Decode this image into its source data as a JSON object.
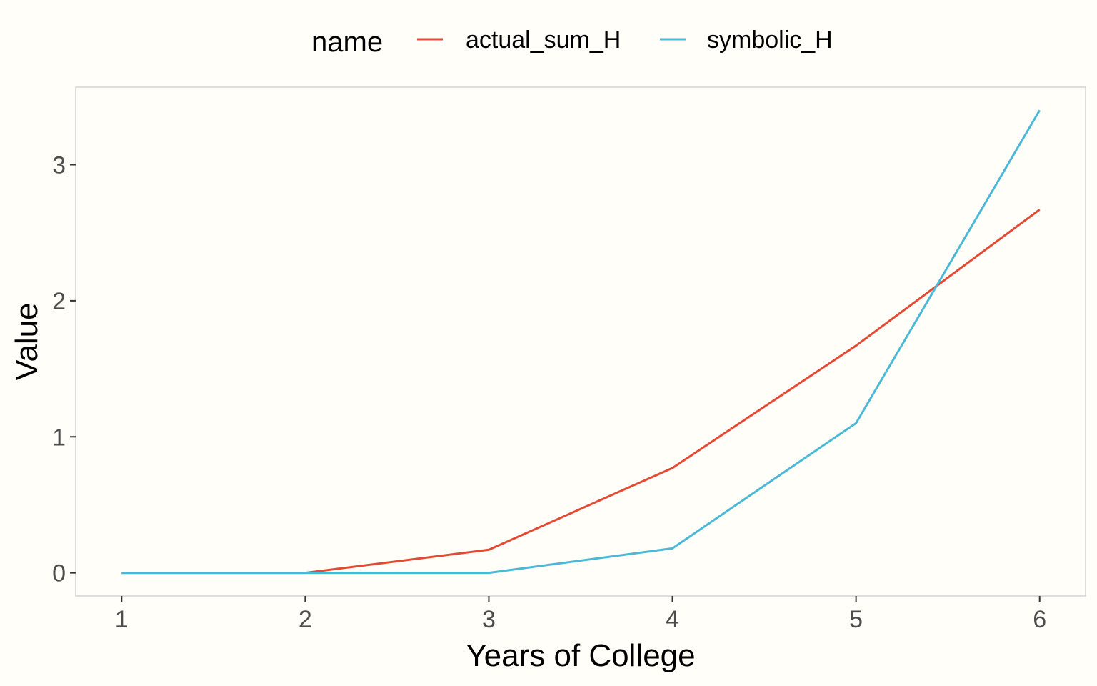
{
  "chart_data": {
    "type": "line",
    "title": "",
    "xlabel": "Years of College",
    "ylabel": "Value",
    "x": [
      1,
      2,
      3,
      4,
      5,
      6
    ],
    "xlim": [
      0.75,
      6.25
    ],
    "ylim": [
      -0.17,
      3.57
    ],
    "xticks": [
      1,
      2,
      3,
      4,
      5,
      6
    ],
    "xtick_labels": [
      "1",
      "2",
      "3",
      "4",
      "5",
      "6"
    ],
    "yticks": [
      0,
      1,
      2,
      3
    ],
    "ytick_labels": [
      "0",
      "1",
      "2",
      "3"
    ],
    "grid": false,
    "legend": {
      "title": "name",
      "placement": "top"
    },
    "series": [
      {
        "name": "actual_sum_H",
        "color": "#e24a33",
        "values": [
          0,
          0,
          0.17,
          0.77,
          1.67,
          2.67
        ]
      },
      {
        "name": "symbolic_H",
        "color": "#4ab8d6",
        "values": [
          0,
          0,
          0,
          0.18,
          1.1,
          3.4
        ]
      }
    ]
  }
}
